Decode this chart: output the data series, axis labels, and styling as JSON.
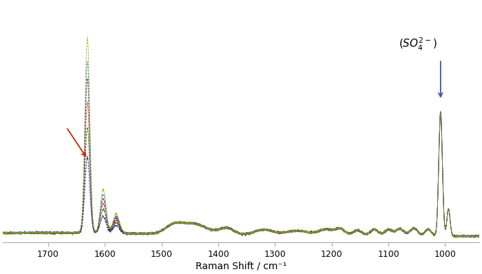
{
  "x_min": 940,
  "x_max": 1780,
  "x_ticks": [
    1700,
    1600,
    1500,
    1400,
    1300,
    1200,
    1100,
    1000
  ],
  "xlabel": "Raman Shift / cm⁻¹",
  "background_color": "#ffffff",
  "line_colors": [
    "#000099",
    "#006600",
    "#cc2200",
    "#880088",
    "#009999",
    "#999900"
  ],
  "so4_peak_cm": 1008,
  "feature_cm": 1631,
  "arrow_red_color": "#cc2200",
  "arrow_blue_color": "#3355aa",
  "ylim": [
    -0.01,
    1.05
  ],
  "noise_level": 0.0025,
  "figsize": [
    7.0,
    3.98
  ],
  "dpi": 100
}
